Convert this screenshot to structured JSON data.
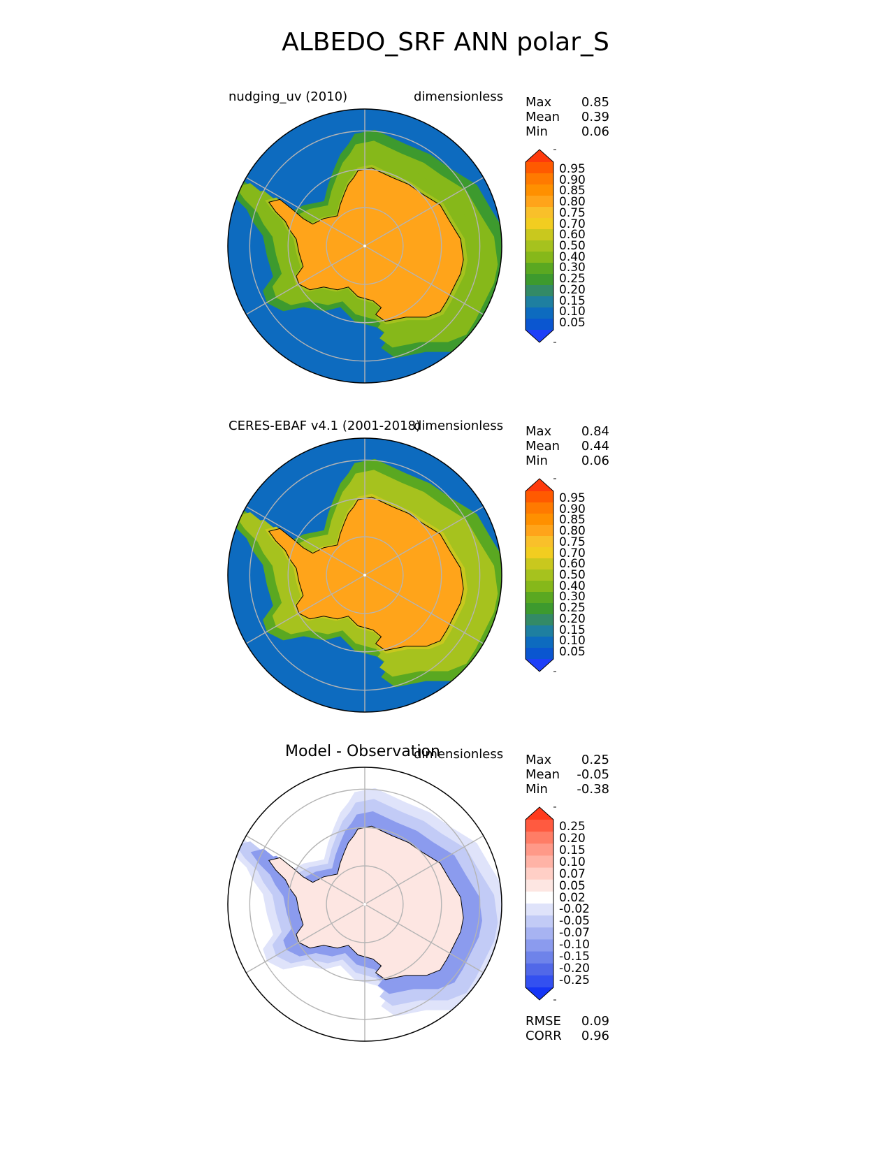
{
  "title": "ALBEDO_SRF ANN polar_S",
  "chart_data": [
    {
      "type": "heatmap",
      "projection": "south-polar-stereographic",
      "title_left": "nudging_uv (2010)",
      "title_right": "dimensionless",
      "stats": [
        {
          "name": "Max",
          "value": "0.85"
        },
        {
          "name": "Mean",
          "value": "0.39"
        },
        {
          "name": "Min",
          "value": "0.06"
        }
      ],
      "colorbar": {
        "ticks": [
          "0.95",
          "0.90",
          "0.85",
          "0.80",
          "0.75",
          "0.70",
          "0.60",
          "0.50",
          "0.40",
          "0.30",
          "0.25",
          "0.20",
          "0.15",
          "0.10",
          "0.05"
        ],
        "colors": [
          "#fe3a0c",
          "#ff5a00",
          "#ff7a00",
          "#ff9000",
          "#ffa41a",
          "#f9c02a",
          "#f2cd20",
          "#c9c81e",
          "#a6c21e",
          "#86b81a",
          "#5aa821",
          "#3d9a2e",
          "#338a66",
          "#1e7fa0",
          "#0d6bbf",
          "#0a56d0",
          "#1e3ff8"
        ],
        "extend": "both"
      },
      "field": {
        "ocean_open": 0.06,
        "sea_ice_outer": 0.32,
        "sea_ice_inner": 0.45,
        "continent": 0.78
      },
      "grid": true
    },
    {
      "type": "heatmap",
      "projection": "south-polar-stereographic",
      "title_left": "CERES-EBAF v4.1 (2001-2018)",
      "title_right": "dimensionless",
      "stats": [
        {
          "name": "Max",
          "value": "0.84"
        },
        {
          "name": "Mean",
          "value": "0.44"
        },
        {
          "name": "Min",
          "value": "0.06"
        }
      ],
      "colorbar": {
        "ticks": [
          "0.95",
          "0.90",
          "0.85",
          "0.80",
          "0.75",
          "0.70",
          "0.60",
          "0.50",
          "0.40",
          "0.30",
          "0.25",
          "0.20",
          "0.15",
          "0.10",
          "0.05"
        ],
        "colors": [
          "#fe3a0c",
          "#ff5a00",
          "#ff7a00",
          "#ff9000",
          "#ffa41a",
          "#f9c02a",
          "#f2cd20",
          "#c9c81e",
          "#a6c21e",
          "#86b81a",
          "#5aa821",
          "#3d9a2e",
          "#338a66",
          "#1e7fa0",
          "#0d6bbf",
          "#0a56d0",
          "#1e3ff8"
        ],
        "extend": "both"
      },
      "field": {
        "ocean_open": 0.06,
        "sea_ice_outer": 0.4,
        "sea_ice_inner": 0.58,
        "continent": 0.78
      },
      "grid": true
    },
    {
      "type": "heatmap",
      "projection": "south-polar-stereographic",
      "title_center": "Model - Observation",
      "title_right": "dimensionless",
      "stats": [
        {
          "name": "Max",
          "value": "0.25"
        },
        {
          "name": "Mean",
          "value": "-0.05"
        },
        {
          "name": "Min",
          "value": "-0.38"
        }
      ],
      "extra_stats": [
        {
          "name": "RMSE",
          "value": "0.09"
        },
        {
          "name": "CORR",
          "value": "0.96"
        }
      ],
      "colorbar": {
        "ticks": [
          "0.25",
          "0.20",
          "0.15",
          "0.10",
          "0.07",
          "0.05",
          "0.02",
          "-0.02",
          "-0.05",
          "-0.07",
          "-0.10",
          "-0.15",
          "-0.20",
          "-0.25"
        ],
        "colors": [
          "#ff3a1c",
          "#ff5a40",
          "#ff7d66",
          "#ff9988",
          "#ffb3a6",
          "#ffcfc6",
          "#fde6e2",
          "#ffffff",
          "#dfe3fa",
          "#c2cbf6",
          "#a7b3f2",
          "#8b9bee",
          "#6e83ea",
          "#5168e8",
          "#3350f0",
          "#1535f5"
        ],
        "extend": "both"
      },
      "field": {
        "ocean_open": 0.0,
        "sea_ice_outer": -0.06,
        "sea_ice_inner": -0.15,
        "continent": 0.02
      },
      "grid": true
    }
  ]
}
